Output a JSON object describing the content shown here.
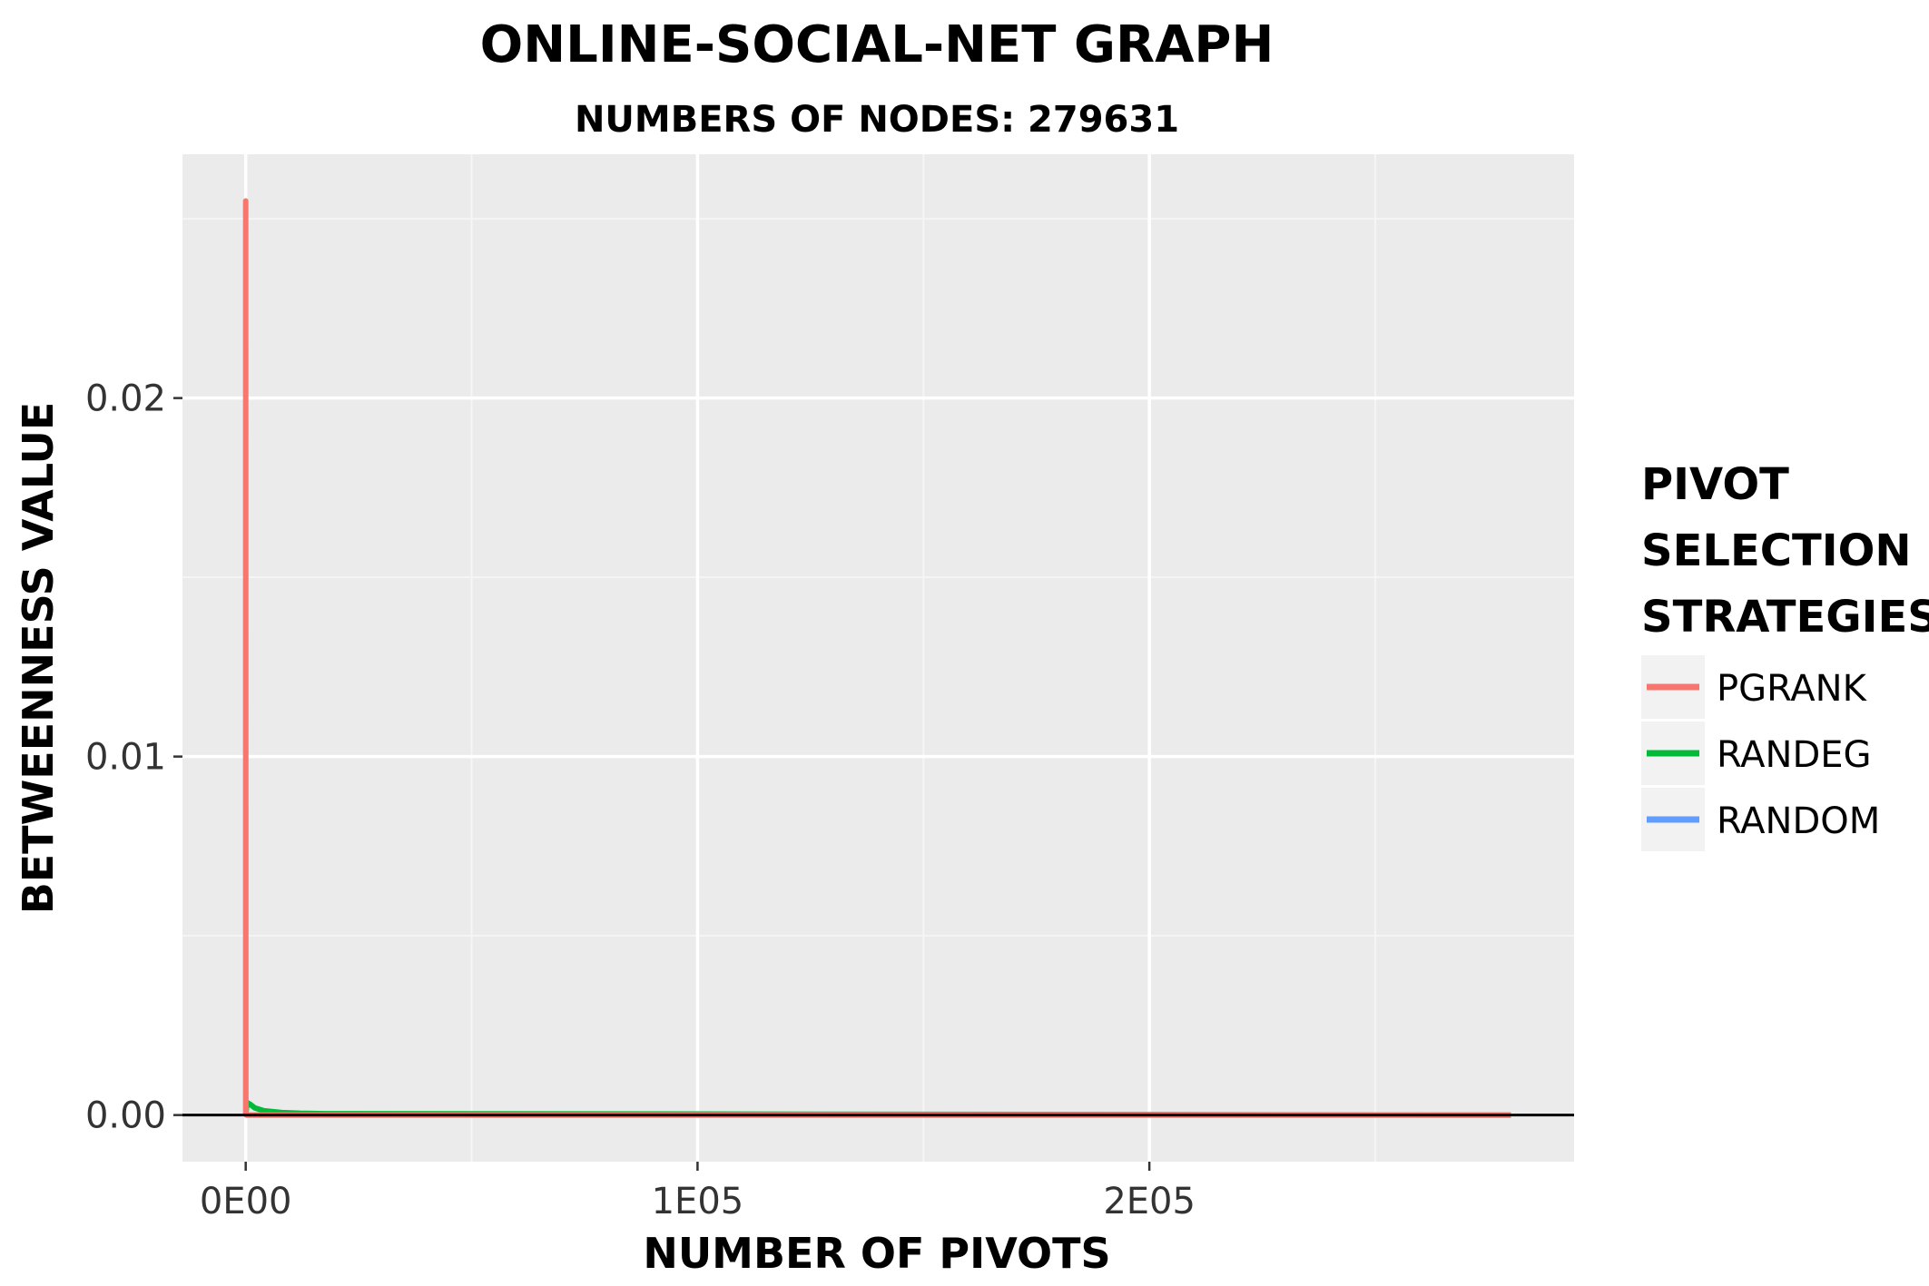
{
  "chart_data": {
    "type": "line",
    "title": "ONLINE-SOCIAL-NET GRAPH",
    "subtitle": "NUMBERS OF NODES: 279631",
    "xlabel": "NUMBER OF PIVOTS",
    "ylabel": "BETWEENNESS VALUE",
    "xlim": [
      -14000,
      294000
    ],
    "ylim": [
      -0.0013,
      0.0268
    ],
    "x_ticks": [
      0,
      100000,
      200000
    ],
    "x_tick_labels": [
      "0E​00",
      "1E​05",
      "2E​05"
    ],
    "y_ticks": [
      0,
      0.01,
      0.02
    ],
    "y_tick_labels": [
      "0.00",
      "0.01",
      "0.02"
    ],
    "grid": true,
    "legend_position": "right",
    "legend_title": [
      "PIVOT",
      "SELECTION",
      "STRATEGIES"
    ],
    "series": [
      {
        "name": "PGRANK",
        "color": "#F8766D",
        "x": [
          0,
          0,
          30,
          60,
          100,
          150,
          280000
        ],
        "y": [
          0,
          0.0255,
          0.0003,
          0.0001,
          5e-05,
          0,
          0
        ]
      },
      {
        "name": "RANDEG",
        "color": "#00BA38",
        "x": [
          0,
          300,
          1000,
          2000,
          4000,
          8000,
          12000,
          17500,
          280000
        ],
        "y": [
          0,
          0.00035,
          0.0003,
          0.0002,
          0.00012,
          7e-05,
          5e-05,
          4e-05,
          0
        ]
      },
      {
        "name": "RANDOM",
        "color": "#619CFF",
        "x": [
          0,
          50000,
          100000,
          150000,
          200000,
          250000,
          280000
        ],
        "y": [
          0,
          0,
          0,
          0,
          0,
          0,
          0
        ]
      }
    ],
    "hline": {
      "y": 0,
      "color": "#000000"
    }
  }
}
